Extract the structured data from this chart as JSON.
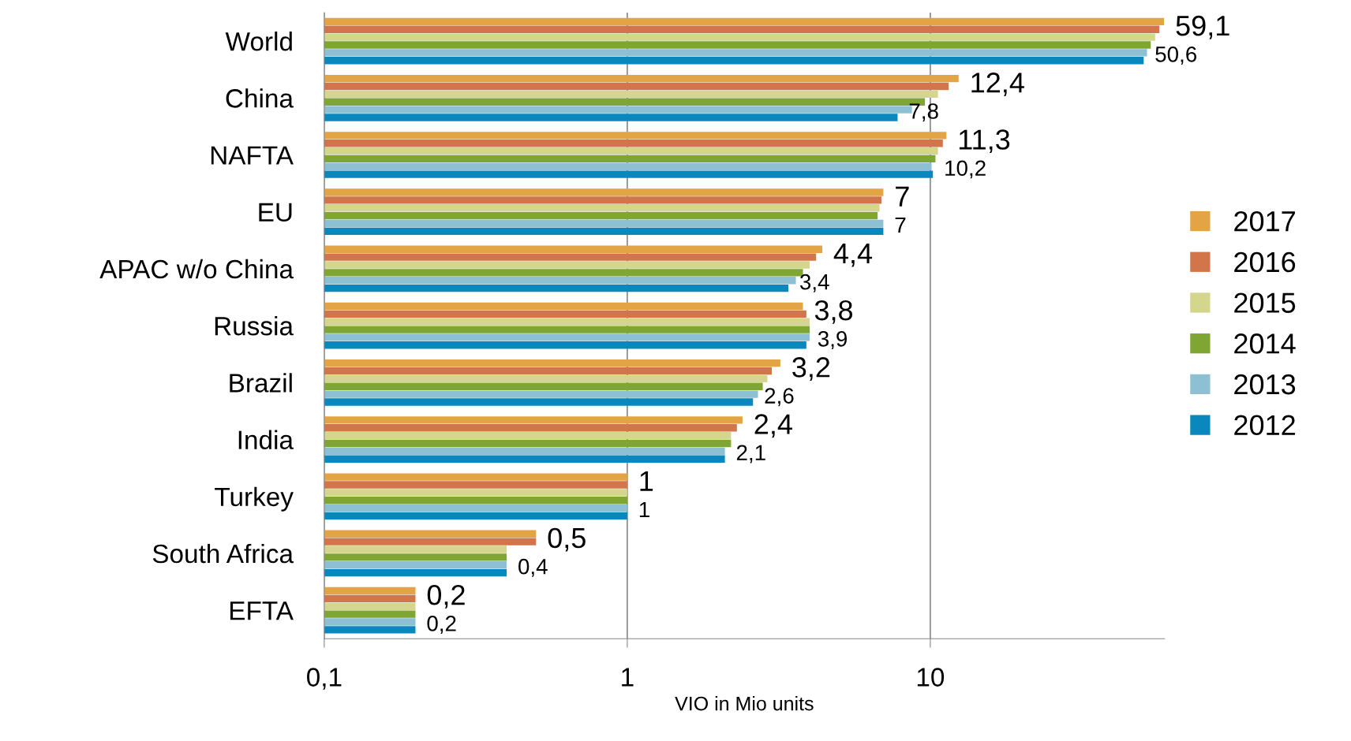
{
  "chart_data": {
    "type": "bar",
    "orientation": "horizontal",
    "log": "x",
    "xlabel": "VIO in Mio units",
    "categories": [
      "World",
      "China",
      "NAFTA",
      "EU",
      "APAC w/o China",
      "Russia",
      "Brazil",
      "India",
      "Turkey",
      "South Africa",
      "EFTA"
    ],
    "series": [
      {
        "name": "2017",
        "color": "#e2a445",
        "values": [
          59.1,
          12.4,
          11.3,
          7,
          4.4,
          3.8,
          3.2,
          2.4,
          1,
          0.5,
          0.2
        ],
        "value_labels": [
          "59,1",
          "12,4",
          "11,3",
          "7",
          "4,4",
          "3,8",
          "3,2",
          "2,4",
          "1",
          "0,5",
          "0,2"
        ]
      },
      {
        "name": "2016",
        "color": "#d2754a",
        "values": [
          57.0,
          11.5,
          11.0,
          6.9,
          4.2,
          3.9,
          3.0,
          2.3,
          1,
          0.5,
          0.2
        ]
      },
      {
        "name": "2015",
        "color": "#d3d68c",
        "values": [
          55.2,
          10.6,
          10.6,
          6.8,
          4.0,
          4.0,
          2.9,
          2.2,
          1,
          0.4,
          0.2
        ]
      },
      {
        "name": "2014",
        "color": "#7fa632",
        "values": [
          53.4,
          9.6,
          10.4,
          6.7,
          3.8,
          4.0,
          2.8,
          2.2,
          1,
          0.4,
          0.2
        ]
      },
      {
        "name": "2013",
        "color": "#8dc0d2",
        "values": [
          51.9,
          8.7,
          10.1,
          7.0,
          3.6,
          4.0,
          2.7,
          2.1,
          1,
          0.4,
          0.2
        ]
      },
      {
        "name": "2012",
        "color": "#0a87bd",
        "values": [
          50.6,
          7.8,
          10.2,
          7,
          3.4,
          3.9,
          2.6,
          2.1,
          1,
          0.4,
          0.2
        ],
        "value_labels": [
          "50,6",
          "7,8",
          "10,2",
          "7",
          "3,4",
          "3,9",
          "2,6",
          "2,1",
          "1",
          "0,4",
          "0,2"
        ]
      }
    ],
    "xlim": [
      0.1,
      59.3
    ],
    "xticks": [
      {
        "value": 0.1,
        "label": "0,1"
      },
      1,
      10
    ],
    "grid": "x",
    "legend": "right"
  }
}
